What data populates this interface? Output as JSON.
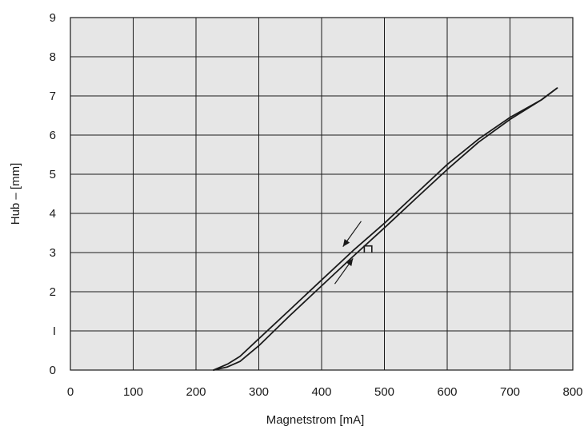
{
  "chart_data": {
    "type": "line",
    "xlabel": "Magnetstrom [mA]",
    "ylabel": "Hub – [mm]",
    "xlim": [
      0,
      800
    ],
    "ylim": [
      0,
      9
    ],
    "x_ticks": [
      "0",
      "100",
      "200",
      "300",
      "400",
      "500",
      "600",
      "700",
      "800"
    ],
    "y_ticks": [
      "0",
      "I",
      "2",
      "3",
      "4",
      "5",
      "6",
      "7",
      "8",
      "9"
    ],
    "grid": true,
    "plot_background": "#e6e6e6",
    "line_color": "#1a1a1a",
    "series": [
      {
        "x": [
          228,
          250,
          270,
          300,
          350,
          400,
          450,
          500,
          550,
          600,
          650,
          700,
          750,
          775
        ],
        "y": [
          0.0,
          0.15,
          0.35,
          0.8,
          1.55,
          2.3,
          3.05,
          3.75,
          4.5,
          5.25,
          5.9,
          6.45,
          6.9,
          7.2
        ]
      },
      {
        "x": [
          228,
          250,
          270,
          300,
          350,
          400,
          450,
          500,
          550,
          600,
          650,
          700,
          750,
          775
        ],
        "y": [
          0.0,
          0.08,
          0.22,
          0.62,
          1.4,
          2.15,
          2.9,
          3.63,
          4.38,
          5.12,
          5.82,
          6.4,
          6.9,
          7.2
        ]
      }
    ],
    "annotations": [
      {
        "type": "arrow",
        "direction": "decreasing",
        "x": [
          463,
          434
        ],
        "y": [
          3.8,
          3.15
        ]
      },
      {
        "type": "arrow",
        "direction": "increasing",
        "x": [
          421,
          450
        ],
        "y": [
          2.2,
          2.85
        ]
      },
      {
        "type": "bracket",
        "x": [
          468,
          480
        ],
        "y": [
          3.17,
          3.0
        ]
      }
    ]
  }
}
